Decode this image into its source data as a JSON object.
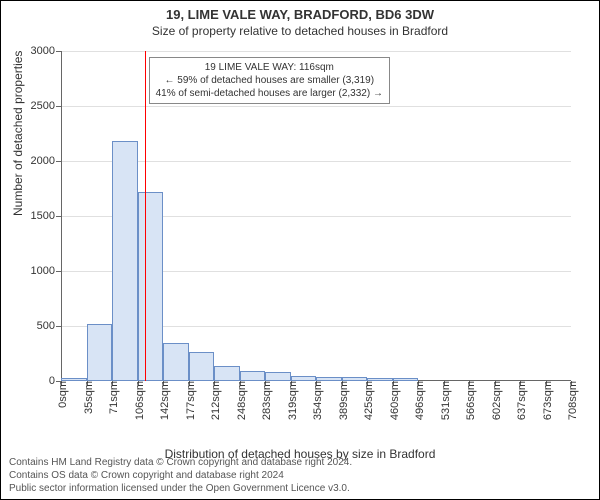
{
  "title_address": "19, LIME VALE WAY, BRADFORD, BD6 3DW",
  "title_sub": "Size of property relative to detached houses in Bradford",
  "y_axis_title": "Number of detached properties",
  "x_axis_title": "Distribution of detached houses by size in Bradford",
  "footer_line1": "Contains HM Land Registry data © Crown copyright and database right 2024.",
  "footer_line2": "Contains OS data © Crown copyright and database right 2024",
  "footer_line3": "Public sector information licensed under the Open Government Licence v3.0.",
  "chart": {
    "type": "histogram",
    "ylim": [
      0,
      3000
    ],
    "ytick_step": 500,
    "y_ticks": [
      0,
      500,
      1000,
      1500,
      2000,
      2500,
      3000
    ],
    "x_labels": [
      "0sqm",
      "35sqm",
      "71sqm",
      "106sqm",
      "142sqm",
      "177sqm",
      "212sqm",
      "248sqm",
      "283sqm",
      "319sqm",
      "354sqm",
      "389sqm",
      "425sqm",
      "460sqm",
      "496sqm",
      "531sqm",
      "566sqm",
      "602sqm",
      "637sqm",
      "673sqm",
      "708sqm"
    ],
    "bar_values": [
      30,
      520,
      2180,
      1720,
      350,
      260,
      140,
      90,
      80,
      50,
      40,
      40,
      30,
      30,
      0,
      0,
      0,
      0,
      0,
      0
    ],
    "bar_fill": "#d8e4f5",
    "bar_stroke": "#6b8fc7",
    "background_color": "#ffffff",
    "grid_color": "#e0e0e0",
    "axis_color": "#666666",
    "text_color": "#333333",
    "title_fontsize": 13,
    "subtitle_fontsize": 12,
    "axis_title_fontsize": 12,
    "tick_fontsize": 11,
    "annotation_fontsize": 10,
    "bar_width_ratio": 1.0
  },
  "marker": {
    "value_sqm": 116,
    "color": "#ff0000",
    "fraction_between_ticks": 0.28,
    "left_tick_index": 3
  },
  "annotation": {
    "line1": "19 LIME VALE WAY: 116sqm",
    "line2": "← 59% of detached houses are smaller (3,319)",
    "line3": "41% of semi-detached houses are larger (2,332) →"
  }
}
